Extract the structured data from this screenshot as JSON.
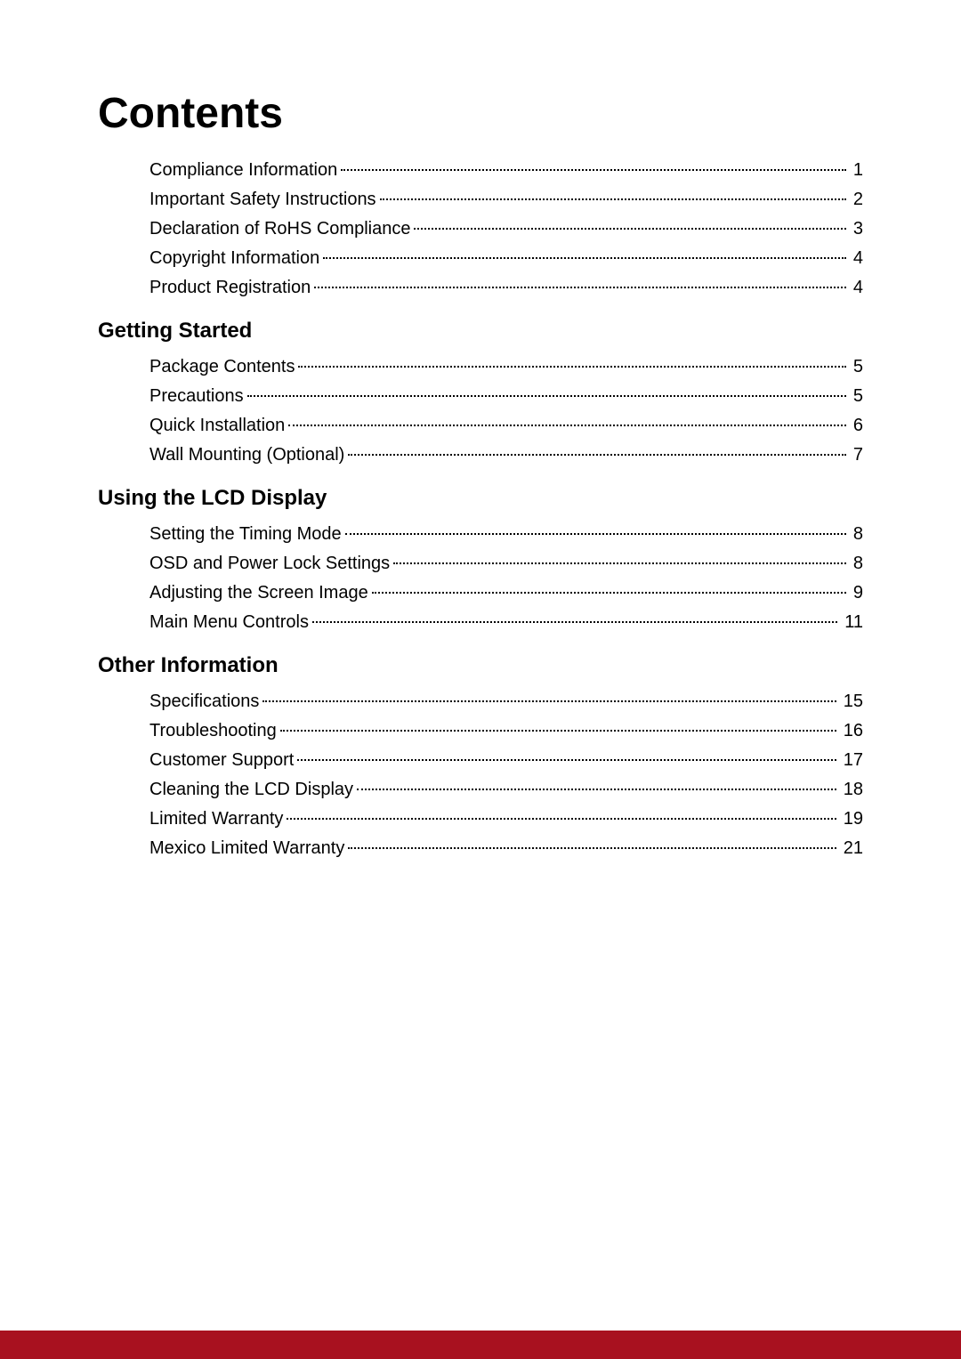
{
  "title": "Contents",
  "colors": {
    "text": "#000000",
    "background": "#ffffff",
    "footer_bar": "#a8111f",
    "leader_dot": "#000000"
  },
  "typography": {
    "title_fontsize": 48,
    "title_weight": "bold",
    "section_fontsize": 24,
    "section_weight": "bold",
    "entry_fontsize": 20,
    "font_family": "Arial"
  },
  "sections": [
    {
      "heading": null,
      "entries": [
        {
          "label": "Compliance Information",
          "page": "1"
        },
        {
          "label": "Important Safety Instructions",
          "page": "2"
        },
        {
          "label": "Declaration of RoHS Compliance",
          "page": "3"
        },
        {
          "label": "Copyright Information",
          "page": "4"
        },
        {
          "label": "Product Registration",
          "page": "4"
        }
      ]
    },
    {
      "heading": "Getting Started",
      "entries": [
        {
          "label": "Package Contents",
          "page": "5"
        },
        {
          "label": "Precautions",
          "page": "5"
        },
        {
          "label": "Quick Installation",
          "page": "6"
        },
        {
          "label": "Wall Mounting (Optional)",
          "page": "7"
        }
      ]
    },
    {
      "heading": "Using the LCD Display",
      "entries": [
        {
          "label": "Setting the Timing Mode",
          "page": "8"
        },
        {
          "label": "OSD and Power Lock Settings",
          "page": "8"
        },
        {
          "label": "Adjusting the Screen Image",
          "page": "9"
        },
        {
          "label": "Main Menu Controls",
          "page": "11"
        }
      ]
    },
    {
      "heading": "Other Information",
      "entries": [
        {
          "label": "Specifications",
          "page": "15"
        },
        {
          "label": "Troubleshooting",
          "page": "16"
        },
        {
          "label": "Customer Support",
          "page": "17"
        },
        {
          "label": "Cleaning the LCD Display",
          "page": "18"
        },
        {
          "label": "Limited Warranty",
          "page": "19"
        },
        {
          "label": "Mexico Limited Warranty",
          "page": "21"
        }
      ]
    }
  ]
}
